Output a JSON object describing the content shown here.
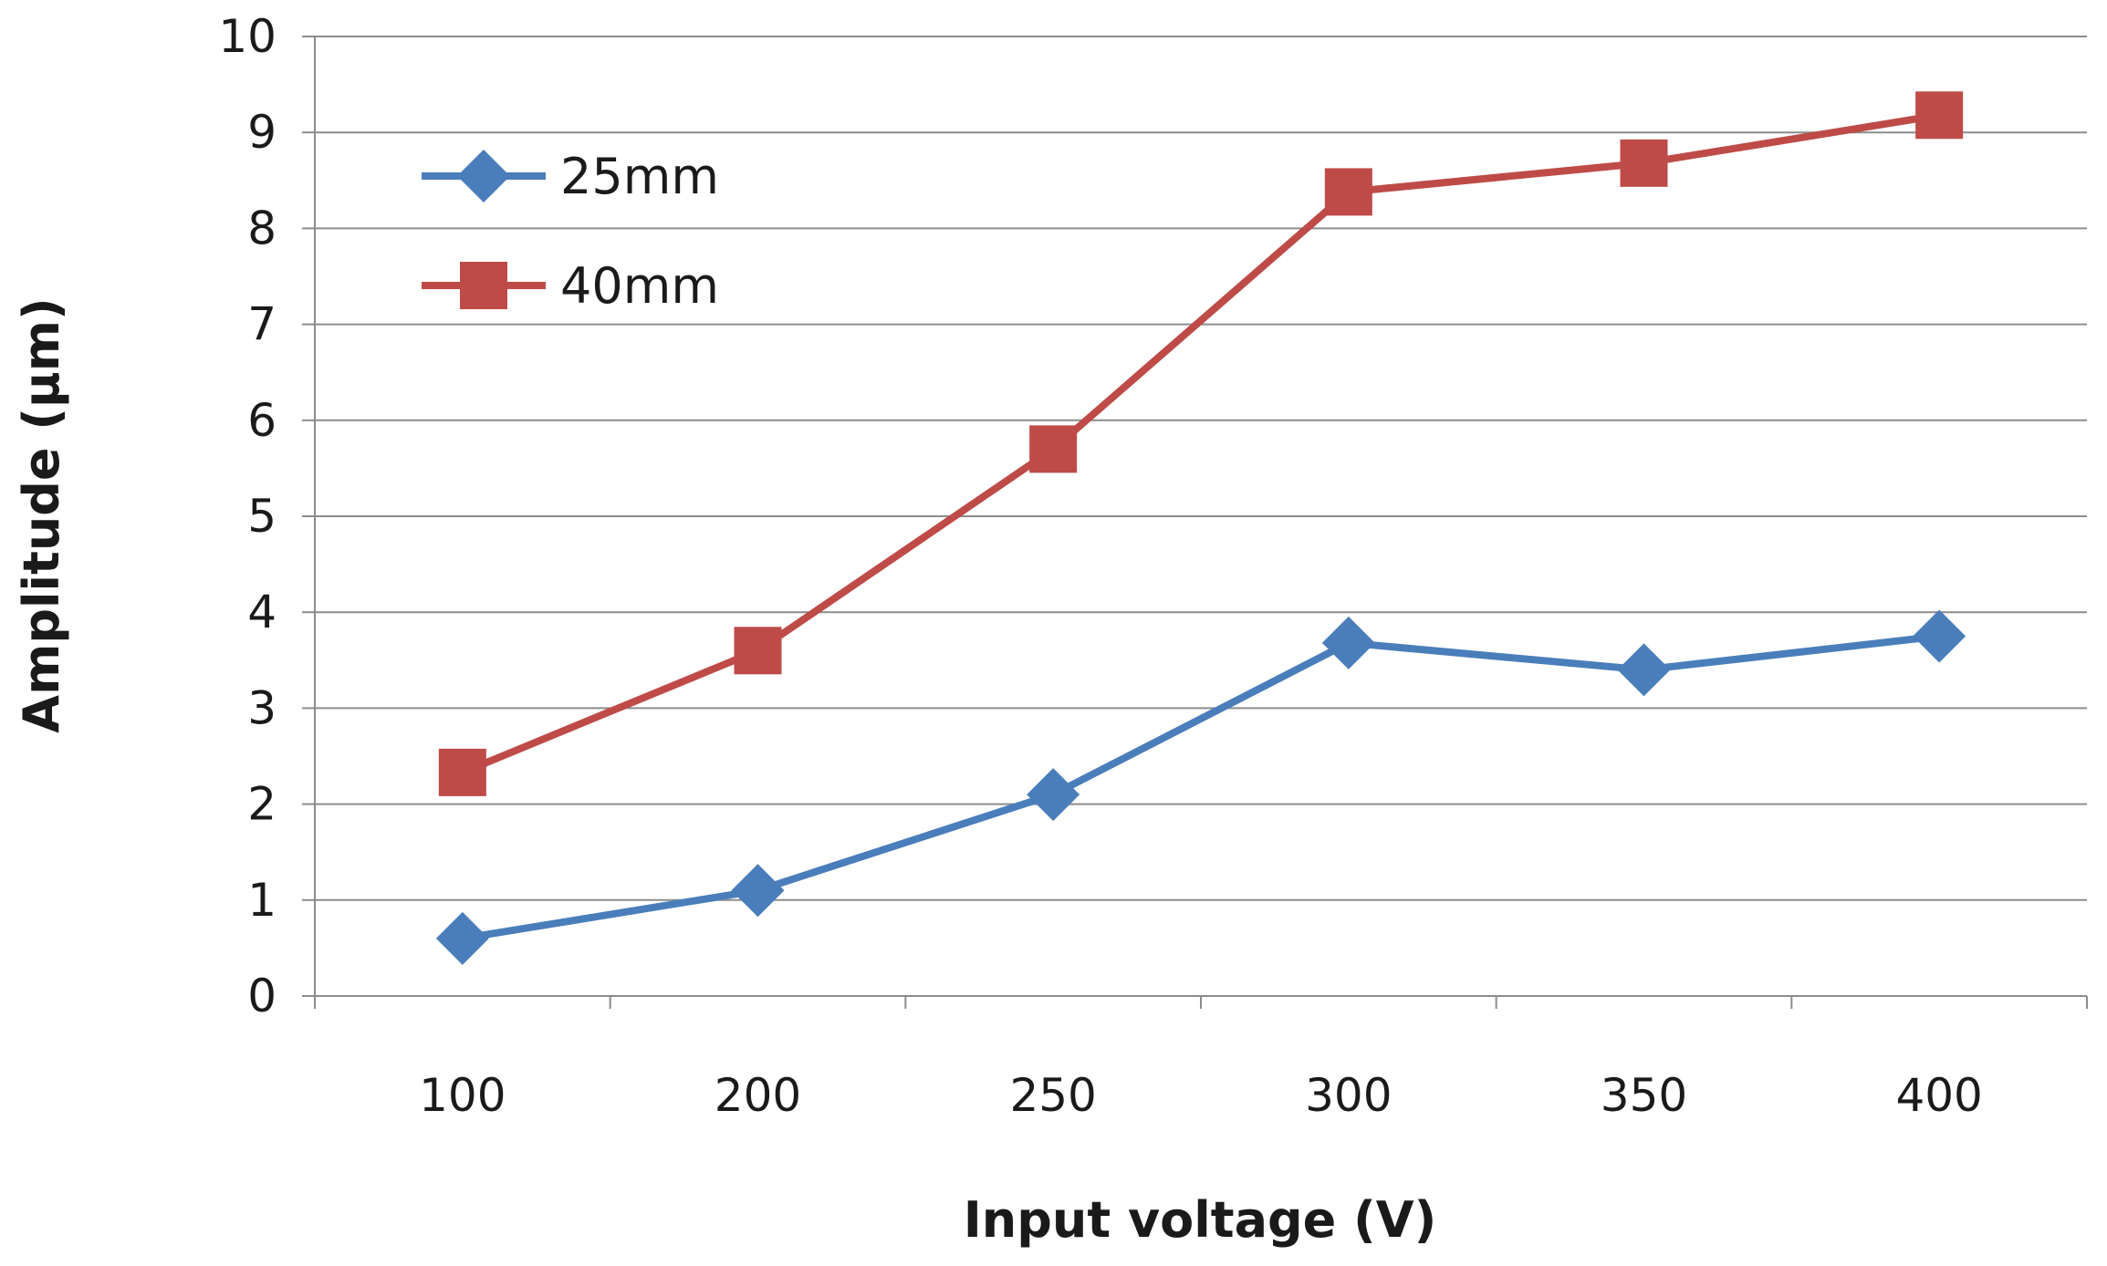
{
  "chart_data": {
    "type": "line",
    "title": "",
    "xlabel": "Input voltage (V)",
    "ylabel": "Amplitude (µm)",
    "categories": [
      "100",
      "200",
      "250",
      "300",
      "350",
      "400"
    ],
    "ylim": [
      0,
      10
    ],
    "yticks": [
      "0",
      "1",
      "2",
      "3",
      "4",
      "5",
      "6",
      "7",
      "8",
      "9",
      "10"
    ],
    "grid": true,
    "legend_position": "top-left",
    "series": [
      {
        "name": "25mm",
        "values": [
          0.6,
          1.1,
          2.1,
          3.68,
          3.4,
          3.75
        ],
        "color": "#4a7ebb",
        "marker": "diamond"
      },
      {
        "name": "40mm",
        "values": [
          2.33,
          3.6,
          5.7,
          8.38,
          8.68,
          9.18
        ],
        "color": "#be4b48",
        "marker": "square"
      }
    ]
  }
}
